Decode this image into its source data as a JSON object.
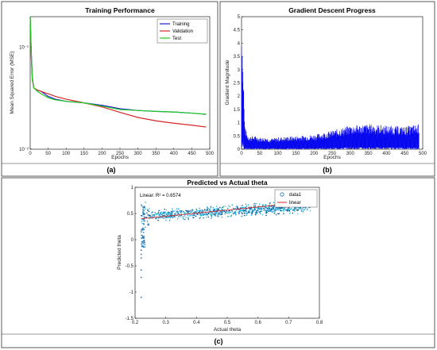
{
  "captions": [
    "(a)",
    "(b)",
    "(c)"
  ],
  "chart_data": [
    {
      "type": "line",
      "title": "Training Performance",
      "xlabel": "Epochs",
      "ylabel": "Mean Squared Error (MSE)",
      "xlim": [
        0,
        500
      ],
      "ylim": [
        0.01,
        0.2
      ],
      "yscale": "log",
      "xticks": [
        0,
        50,
        100,
        150,
        200,
        250,
        300,
        350,
        400,
        450,
        500
      ],
      "yticks": [
        {
          "value": 0.01,
          "label": "10⁻²"
        },
        {
          "value": 0.1,
          "label": "10⁻¹"
        }
      ],
      "legend": "top-right",
      "series": [
        {
          "name": "Training",
          "color": "#1f1fd6",
          "x": [
            0,
            3,
            6,
            10,
            20,
            30,
            50,
            70,
            100,
            150,
            200,
            250,
            300,
            350,
            400,
            450,
            490
          ],
          "y": [
            0.2,
            0.09,
            0.05,
            0.04,
            0.038,
            0.037,
            0.033,
            0.031,
            0.0295,
            0.0285,
            0.027,
            0.025,
            0.024,
            0.0235,
            0.0232,
            0.0226,
            0.022
          ]
        },
        {
          "name": "Validation",
          "color": "#d62728",
          "x": [
            0,
            3,
            6,
            10,
            20,
            30,
            50,
            70,
            100,
            150,
            200,
            250,
            300,
            350,
            400,
            450,
            490
          ],
          "y": [
            0.2,
            0.08,
            0.048,
            0.04,
            0.038,
            0.037,
            0.035,
            0.033,
            0.031,
            0.0285,
            0.026,
            0.023,
            0.0205,
            0.019,
            0.018,
            0.0172,
            0.0165
          ]
        },
        {
          "name": "Test",
          "color": "#22cc22",
          "x": [
            0,
            3,
            6,
            10,
            20,
            30,
            50,
            70,
            100,
            150,
            200,
            250,
            300,
            350,
            400,
            450,
            490
          ],
          "y": [
            0.2,
            0.085,
            0.048,
            0.04,
            0.037,
            0.035,
            0.032,
            0.0305,
            0.0295,
            0.0285,
            0.0265,
            0.0245,
            0.024,
            0.0235,
            0.0232,
            0.0226,
            0.0221
          ]
        }
      ]
    },
    {
      "type": "line",
      "title": "Gradient Descent Progress",
      "xlabel": "Epochs",
      "ylabel": "Gradient Magnitude",
      "xlim": [
        0,
        500
      ],
      "ylim": [
        0,
        5
      ],
      "xticks": [
        0,
        50,
        100,
        150,
        200,
        250,
        300,
        350,
        400,
        450,
        500
      ],
      "yticks": [
        0,
        0.5,
        1,
        1.5,
        2,
        2.5,
        3,
        3.5,
        4,
        4.5,
        5
      ],
      "series": [
        {
          "name": "",
          "color": "#0000ee",
          "envelope_x": [
            0,
            2,
            4,
            6,
            8,
            10,
            15,
            20,
            25,
            30,
            40,
            50,
            60,
            70,
            80,
            100,
            150,
            200,
            250,
            300,
            350,
            400,
            450,
            490
          ],
          "envelope_y": [
            4.9,
            4.5,
            3.5,
            2.6,
            1.2,
            0.8,
            0.6,
            0.5,
            0.5,
            0.5,
            0.5,
            0.45,
            0.45,
            0.45,
            0.4,
            0.45,
            0.5,
            0.55,
            0.7,
            0.9,
            0.95,
            0.9,
            0.85,
            0.95
          ]
        }
      ]
    },
    {
      "type": "scatter",
      "title": "Predicted vs Actual theta",
      "xlabel": "Actual theta",
      "ylabel": "Predicted theta",
      "xlim": [
        0.2,
        0.8
      ],
      "ylim": [
        -1.5,
        1
      ],
      "xticks": [
        0.2,
        0.3,
        0.4,
        0.5,
        0.6,
        0.7,
        0.8
      ],
      "yticks": [
        -1.5,
        -1,
        -0.5,
        0,
        0.5,
        1
      ],
      "legend": "top-right",
      "annotation": "Linear: R² = 0.6574",
      "series": [
        {
          "name": "data1",
          "color": "#1f77b4",
          "cluster_x": [
            0.22,
            0.77
          ],
          "cluster_y_center": [
            0.45,
            0.63
          ],
          "outliers": [
            [
              0.22,
              -1.1
            ],
            [
              0.22,
              -0.72
            ],
            [
              0.22,
              -0.58
            ],
            [
              0.22,
              -0.35
            ],
            [
              0.22,
              -0.28
            ],
            [
              0.22,
              -0.2
            ],
            [
              0.225,
              0.05
            ],
            [
              0.22,
              0.15
            ]
          ]
        },
        {
          "name": "linear",
          "color": "#d62728",
          "x": [
            0.22,
            0.78
          ],
          "y": [
            0.4,
            0.73
          ]
        }
      ]
    }
  ]
}
